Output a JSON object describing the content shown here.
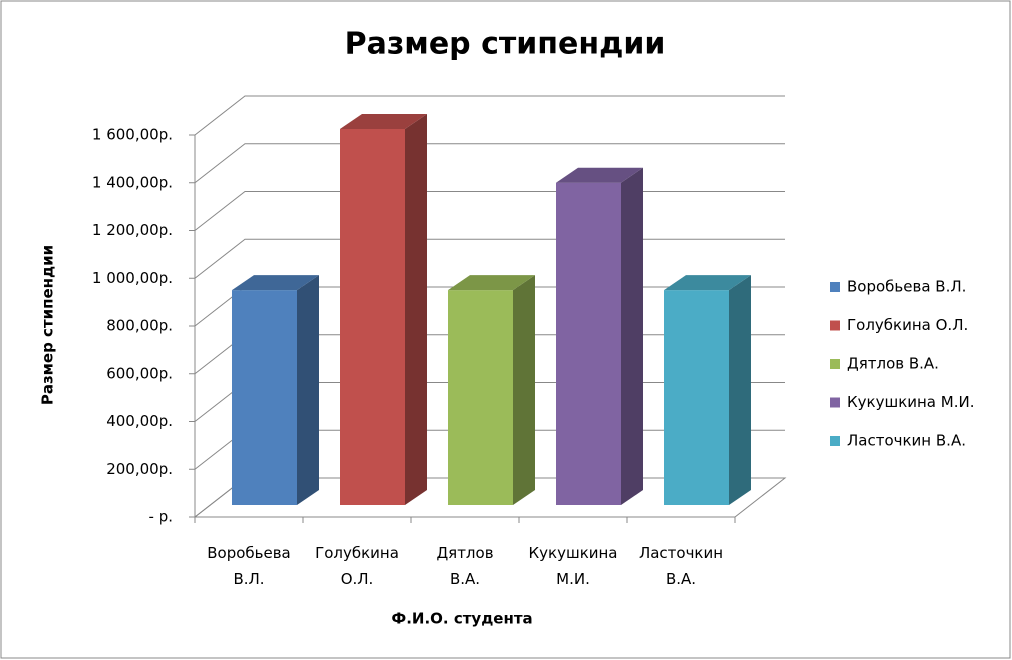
{
  "chart_data": {
    "type": "bar3d",
    "title": "Размер стипендии",
    "x_label": "Ф.И.О. студента",
    "y_label": "Размер стипендии",
    "categories": [
      "Воробьева В.Л.",
      "Голубкина О.Л.",
      "Дятлов В.А.",
      "Кукушкина М.И.",
      "Ласточкин В.А."
    ],
    "values": [
      900,
      1575,
      900,
      1350,
      900
    ],
    "colors": [
      "#4f81bd",
      "#c0504d",
      "#9bbb59",
      "#8064a2",
      "#4bacc6"
    ],
    "ylim": [
      0,
      1600
    ],
    "yticks": [
      {
        "value": 0,
        "label": "-   р."
      },
      {
        "value": 200,
        "label": "200,00р."
      },
      {
        "value": 400,
        "label": "400,00р."
      },
      {
        "value": 600,
        "label": "600,00р."
      },
      {
        "value": 800,
        "label": "800,00р."
      },
      {
        "value": 1000,
        "label": "1 000,00р."
      },
      {
        "value": 1200,
        "label": "1 200,00р."
      },
      {
        "value": 1400,
        "label": "1 400,00р."
      },
      {
        "value": 1600,
        "label": "1 600,00р."
      }
    ],
    "grid": true,
    "legend": "right"
  }
}
